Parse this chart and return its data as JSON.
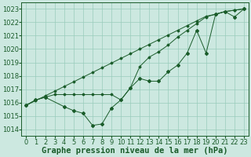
{
  "title": "Graphe pression niveau de la mer (hPa)",
  "background_color": "#cce8e0",
  "plot_background": "#cce8e0",
  "grid_color": "#99ccbb",
  "line_color": "#1a5c2a",
  "ylim": [
    1013.5,
    1023.5
  ],
  "xlim": [
    -0.5,
    23.5
  ],
  "yticks": [
    1014,
    1015,
    1016,
    1017,
    1018,
    1019,
    1020,
    1021,
    1022,
    1023
  ],
  "xticks": [
    0,
    1,
    2,
    3,
    4,
    5,
    6,
    7,
    8,
    9,
    10,
    11,
    12,
    13,
    14,
    15,
    16,
    17,
    18,
    19,
    20,
    21,
    22,
    23
  ],
  "series1_wobbly": [
    1015.8,
    1016.2,
    1016.4,
    1015.7,
    1015.4,
    1015.2,
    1014.3,
    1014.4,
    1015.6,
    1016.2,
    1017.1,
    1017.8,
    1017.6,
    1017.6,
    1018.3,
    1018.8,
    1019.7,
    1021.4,
    1019.7,
    1022.6,
    1022.8,
    1022.4,
    1023.0
  ],
  "series1_x": [
    0,
    1,
    2,
    4,
    5,
    6,
    7,
    8,
    9,
    10,
    11,
    12,
    13,
    14,
    15,
    16,
    17,
    18,
    19,
    20,
    21,
    22,
    23
  ],
  "series2_flat": [
    1015.8,
    1016.2,
    1016.4,
    1016.6,
    1016.6,
    1016.6,
    1016.6,
    1016.6,
    1016.6,
    1016.6,
    1016.2,
    1017.1,
    1018.7,
    1019.4,
    1019.8,
    1020.3,
    1020.9,
    1021.4,
    1021.9,
    1022.4,
    1022.6,
    1022.8,
    1022.9,
    1023.0
  ],
  "series3_diag": [
    1015.8,
    1016.15,
    1016.5,
    1016.85,
    1017.2,
    1017.55,
    1017.9,
    1018.25,
    1018.6,
    1018.95,
    1019.3,
    1019.65,
    1020.0,
    1020.35,
    1020.7,
    1021.05,
    1021.4,
    1021.75,
    1022.1,
    1022.45,
    1022.6,
    1022.8,
    1022.9,
    1023.0
  ],
  "title_fontsize": 7.5,
  "tick_fontsize": 6
}
